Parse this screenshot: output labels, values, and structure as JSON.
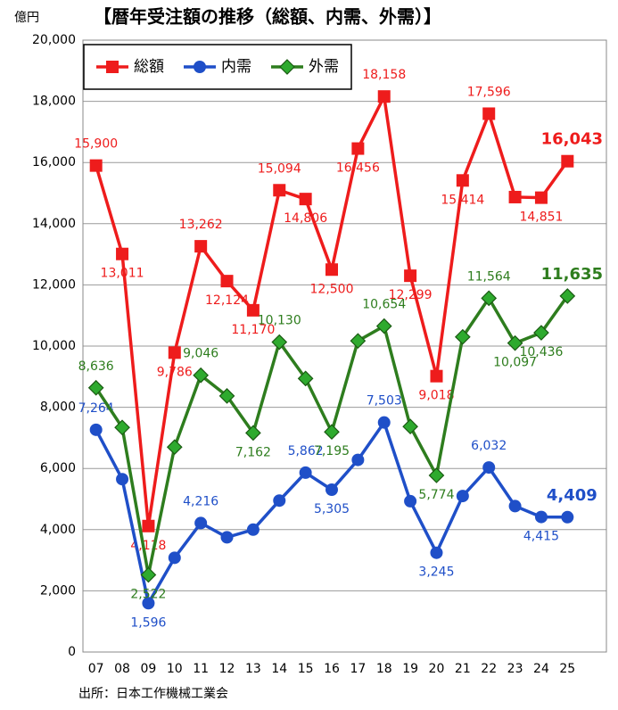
{
  "chart_data": {
    "type": "line",
    "title": "【暦年受注額の推移（総額、内需、外需）】",
    "y_unit": "億円",
    "source": "出所：日本工作機械工業会",
    "categories": [
      "07",
      "08",
      "09",
      "10",
      "11",
      "12",
      "13",
      "14",
      "15",
      "16",
      "17",
      "18",
      "19",
      "20",
      "21",
      "22",
      "23",
      "24",
      "25"
    ],
    "ylim": [
      0,
      20000
    ],
    "yticks": [
      0,
      {
        "value": 2000,
        "label": "2,000"
      },
      {
        "value": 4000,
        "label": "4,000"
      },
      {
        "value": 6000,
        "label": "6,000"
      },
      {
        "value": 8000,
        "label": "8,000"
      },
      {
        "value": 10000,
        "label": "10,000"
      },
      {
        "value": 12000,
        "label": "12,000"
      },
      {
        "value": 14000,
        "label": "14,000"
      },
      {
        "value": 16000,
        "label": "16,000"
      },
      {
        "value": 18000,
        "label": "18,000"
      },
      {
        "value": 20000,
        "label": "20,000"
      }
    ],
    "grid": true,
    "legend": "top-left",
    "series": [
      {
        "name": "総額",
        "color": "#ee1c1c",
        "marker": "square",
        "values": [
          15900,
          13011,
          4118,
          9786,
          13262,
          12124,
          11170,
          15094,
          14806,
          12500,
          16456,
          18158,
          12299,
          9018,
          15414,
          17596,
          14870,
          14851,
          16043
        ],
        "value_labels": [
          "15,900",
          "13,011",
          "4,118",
          "9,786",
          "13,262",
          "12,124",
          "11,170",
          "15,094",
          "14,806",
          "12,500",
          "16,456",
          "18,158",
          "12,299",
          "9,018",
          "15,414",
          "17,596",
          null,
          "14,851",
          "16,043"
        ]
      },
      {
        "name": "内需",
        "color": "#1f4fc8",
        "marker": "circle",
        "values": [
          7264,
          5650,
          1596,
          3080,
          4216,
          3750,
          4000,
          4950,
          5862,
          5305,
          6280,
          7503,
          4930,
          3245,
          5100,
          6032,
          4770,
          4415,
          4409
        ],
        "value_labels": [
          "7,264",
          null,
          "1,596",
          null,
          "4,216",
          null,
          null,
          null,
          "5,862",
          "5,305",
          null,
          "7,503",
          null,
          "3,245",
          null,
          "6,032",
          null,
          "4,415",
          "4,409"
        ]
      },
      {
        "name": "外需",
        "color": "#2e7d1e",
        "marker": "diamond",
        "values": [
          8636,
          7340,
          2522,
          6700,
          9046,
          8370,
          7162,
          10130,
          8940,
          7195,
          10170,
          10654,
          7370,
          5774,
          10300,
          11564,
          10097,
          10436,
          11635
        ],
        "value_labels": [
          "8,636",
          null,
          "2,522",
          null,
          "9,046",
          null,
          "7,162",
          "10,130",
          null,
          "7,195",
          null,
          "10,654",
          null,
          "5,774",
          null,
          "11,564",
          "10,097",
          "10,436",
          "11,635"
        ]
      }
    ]
  }
}
